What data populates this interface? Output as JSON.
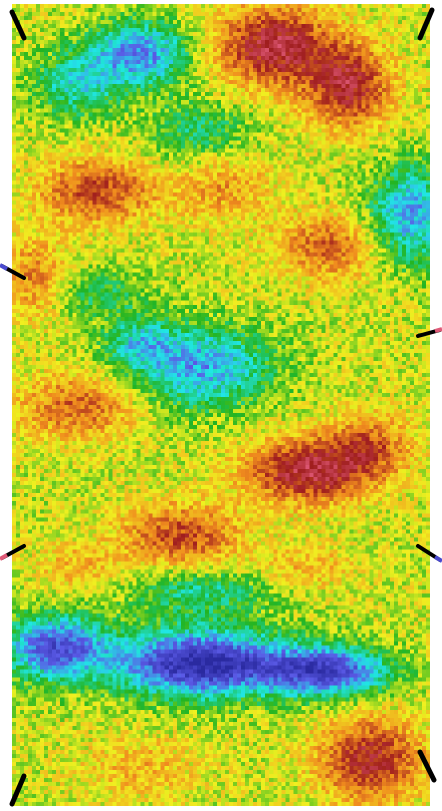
{
  "chart_data": {
    "type": "heatmap",
    "title": "",
    "xlabel": "",
    "ylabel": "",
    "colormap": [
      "#2a2aa0",
      "#5a5ae6",
      "#20e6e6",
      "#22b422",
      "#f0f020",
      "#f08c1e",
      "#a01e1e",
      "#e05a78"
    ],
    "grid": false,
    "legend": "none"
  },
  "markers": [
    {
      "name": "corner-tick-top-left",
      "color": "#000000",
      "accent": ""
    },
    {
      "name": "corner-tick-top-right",
      "color": "#000000",
      "accent": ""
    },
    {
      "name": "edge-tick-left-upper",
      "color": "#000000",
      "accent": "#4a4ad0"
    },
    {
      "name": "edge-tick-right-upper",
      "color": "#000000",
      "accent": "#e05a78"
    },
    {
      "name": "edge-tick-left-lower",
      "color": "#000000",
      "accent": "#e05a78"
    },
    {
      "name": "edge-tick-right-lower",
      "color": "#000000",
      "accent": "#4a4ad0"
    },
    {
      "name": "corner-tick-bottom-left",
      "color": "#000000",
      "accent": ""
    },
    {
      "name": "corner-tick-bottom-right",
      "color": "#000000",
      "accent": ""
    }
  ]
}
